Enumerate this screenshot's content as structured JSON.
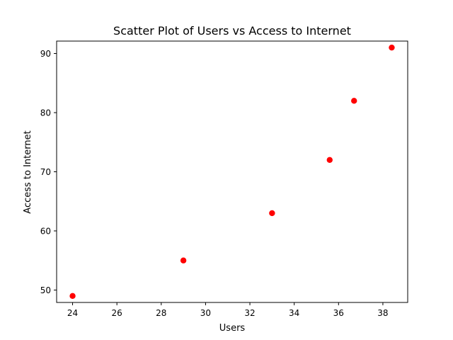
{
  "chart_data": {
    "type": "scatter",
    "title": "Scatter Plot of Users vs Access to Internet",
    "xlabel": "Users",
    "ylabel": "Access to Internet",
    "xlim": [
      23.28,
      39.12
    ],
    "ylim": [
      47.9,
      92.1
    ],
    "xticks": [
      24,
      26,
      28,
      30,
      32,
      34,
      36,
      38
    ],
    "yticks": [
      50,
      60,
      70,
      80,
      90
    ],
    "grid": false,
    "marker_color": "#ff0000",
    "points": [
      {
        "x": 24.0,
        "y": 49
      },
      {
        "x": 29.0,
        "y": 55
      },
      {
        "x": 33.0,
        "y": 63
      },
      {
        "x": 35.6,
        "y": 72
      },
      {
        "x": 36.7,
        "y": 82
      },
      {
        "x": 38.4,
        "y": 91
      }
    ]
  }
}
